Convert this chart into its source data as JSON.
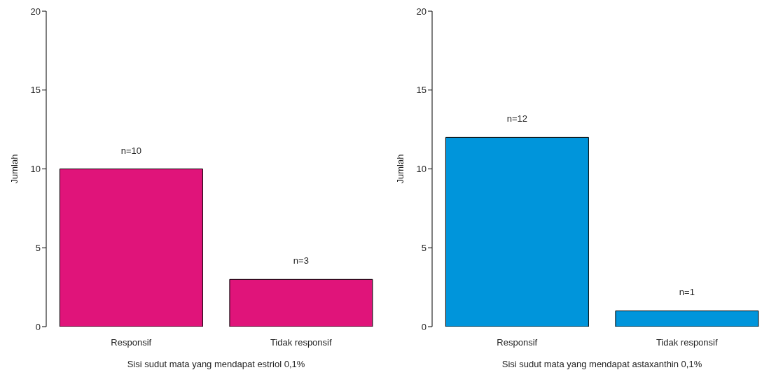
{
  "chart_data": [
    {
      "type": "bar",
      "categories": [
        "Responsif",
        "Tidak responsif"
      ],
      "values": [
        10,
        3
      ],
      "color": "#e0147a",
      "value_labels": [
        "n=10",
        "n=3"
      ],
      "ylabel": "Jumlah",
      "xlabel": "Sisi sudut mata yang mendapat estriol 0,1%",
      "ylim": [
        0,
        20
      ],
      "yticks": [
        0,
        5,
        10,
        15,
        20
      ],
      "grid": false,
      "legend": false
    },
    {
      "type": "bar",
      "categories": [
        "Responsif",
        "Tidak responsif"
      ],
      "values": [
        12,
        1
      ],
      "color": "#0095db",
      "value_labels": [
        "n=12",
        "n=1"
      ],
      "ylabel": "Jumlah",
      "xlabel": "Sisi sudut mata yang mendapat astaxanthin 0,1%",
      "ylim": [
        0,
        20
      ],
      "yticks": [
        0,
        5,
        10,
        15,
        20
      ],
      "grid": false,
      "legend": false
    }
  ]
}
